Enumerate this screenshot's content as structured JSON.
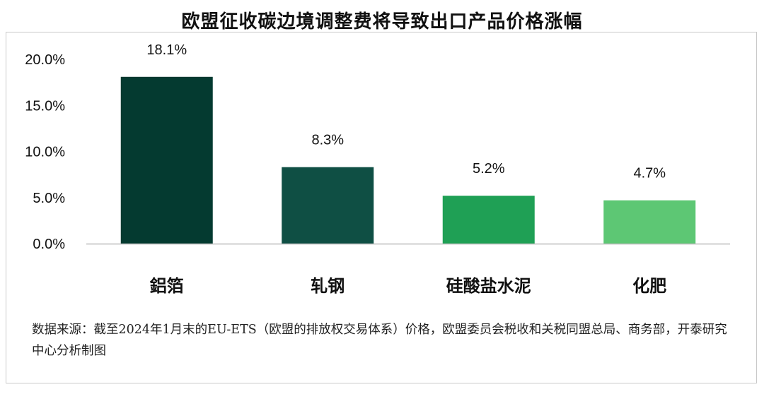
{
  "chart_data": {
    "type": "bar",
    "title": "欧盟征收碳边境调整费将导致出口产品价格涨幅",
    "categories": [
      "鋁箔",
      "轧钢",
      "硅酸盐水泥",
      "化肥"
    ],
    "values": [
      18.1,
      8.3,
      5.2,
      4.7
    ],
    "data_labels": [
      "18.1%",
      "8.3%",
      "5.2%",
      "4.7%"
    ],
    "bar_colors": [
      "#043a30",
      "#0f4f44",
      "#1fa055",
      "#5dc774"
    ],
    "ylim": [
      0,
      20
    ],
    "yticks": [
      0,
      5,
      10,
      15,
      20
    ],
    "ytick_labels": [
      "0.0%",
      "5.0%",
      "10.0%",
      "15.0%",
      "20.0%"
    ],
    "xlabel": "",
    "ylabel": "",
    "grid": false,
    "legend": "none"
  },
  "source_note": "数据来源：截至2024年1月末的EU-ETS（欧盟的排放权交易体系）价格，欧盟委员会税收和关税同盟总局、商务部，开泰研究中心分析制图"
}
